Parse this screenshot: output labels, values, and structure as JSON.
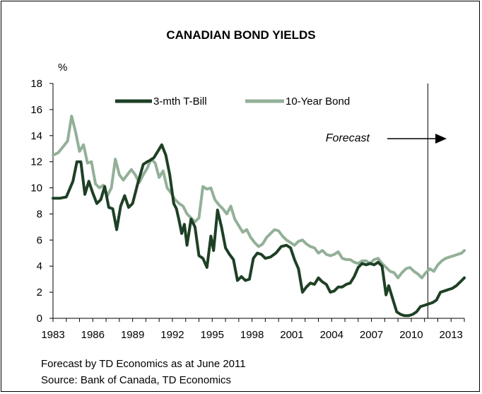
{
  "chart_data": {
    "type": "line",
    "title": "CANADIAN BOND YIELDS",
    "ylabel": "%",
    "xlabel": "",
    "ylim": [
      0,
      18
    ],
    "xlim": [
      1983,
      2014
    ],
    "y_ticks": [
      0,
      2,
      4,
      6,
      8,
      10,
      12,
      14,
      16,
      18
    ],
    "x_ticks": [
      1983,
      1986,
      1989,
      1992,
      1995,
      1998,
      2001,
      2004,
      2007,
      2010,
      2013
    ],
    "grid": false,
    "legend_position": "top",
    "forecast_start": 2011.25,
    "forecast_label": "Forecast",
    "series": [
      {
        "name": "3-mth T-Bill",
        "color": "#1e4025",
        "x": [
          1983,
          1983.5,
          1984,
          1984.5,
          1984.8,
          1985.1,
          1985.4,
          1985.7,
          1986,
          1986.3,
          1986.6,
          1986.9,
          1987.2,
          1987.5,
          1987.8,
          1988.1,
          1988.4,
          1988.7,
          1989,
          1989.4,
          1989.8,
          1990.1,
          1990.3,
          1990.6,
          1990.9,
          1991.2,
          1991.5,
          1991.8,
          1992.1,
          1992.3,
          1992.5,
          1992.7,
          1992.9,
          1993.1,
          1993.4,
          1993.7,
          1994,
          1994.3,
          1994.6,
          1994.9,
          1995.1,
          1995.4,
          1995.7,
          1996,
          1996.3,
          1996.6,
          1996.9,
          1997.2,
          1997.5,
          1997.8,
          1998.1,
          1998.4,
          1998.7,
          1999,
          1999.4,
          1999.8,
          2000.2,
          2000.6,
          2000.9,
          2001.2,
          2001.5,
          2001.8,
          2002.1,
          2002.4,
          2002.7,
          2003,
          2003.3,
          2003.6,
          2003.9,
          2004.2,
          2004.5,
          2004.8,
          2005.1,
          2005.4,
          2005.7,
          2006,
          2006.3,
          2006.6,
          2006.9,
          2007.2,
          2007.5,
          2007.8,
          2008.1,
          2008.3,
          2008.6,
          2008.9,
          2009.2,
          2009.5,
          2009.8,
          2010.1,
          2010.4,
          2010.7,
          2011,
          2011.3,
          2011.6,
          2011.9,
          2012.2,
          2012.5,
          2012.8,
          2013.1,
          2013.4,
          2013.7,
          2014
        ],
        "values": [
          9.2,
          9.2,
          9.3,
          10.5,
          12.0,
          12.0,
          9.5,
          10.5,
          9.6,
          8.8,
          9.1,
          10.1,
          8.5,
          8.4,
          6.8,
          8.6,
          9.4,
          8.5,
          8.8,
          10.4,
          11.8,
          12.0,
          12.1,
          12.3,
          12.8,
          13.3,
          12.5,
          11.0,
          8.8,
          8.4,
          7.5,
          6.5,
          7.2,
          5.6,
          7.6,
          7.0,
          4.8,
          4.6,
          3.9,
          6.3,
          5.2,
          8.3,
          7.0,
          5.4,
          4.9,
          4.5,
          2.9,
          3.2,
          2.9,
          3.0,
          4.6,
          5.0,
          4.9,
          4.6,
          4.7,
          5.0,
          5.5,
          5.6,
          5.4,
          4.5,
          3.8,
          2.0,
          2.4,
          2.7,
          2.6,
          3.1,
          2.8,
          2.6,
          2.0,
          2.1,
          2.4,
          2.4,
          2.6,
          2.7,
          3.2,
          3.9,
          4.2,
          4.1,
          4.2,
          4.1,
          4.3,
          4.0,
          1.8,
          2.5,
          1.5,
          0.5,
          0.3,
          0.2,
          0.2,
          0.3,
          0.5,
          0.9,
          1.0,
          1.1,
          1.2,
          1.4,
          2.0,
          2.1,
          2.2,
          2.3,
          2.5,
          2.8,
          3.1
        ]
      },
      {
        "name": "10-Year Bond",
        "color": "#93b098",
        "x": [
          1983,
          1983.4,
          1983.8,
          1984.1,
          1984.4,
          1984.7,
          1985,
          1985.3,
          1985.6,
          1985.9,
          1986.2,
          1986.5,
          1986.8,
          1987.1,
          1987.4,
          1987.7,
          1988,
          1988.3,
          1988.6,
          1988.9,
          1989.2,
          1989.5,
          1989.8,
          1990.1,
          1990.4,
          1990.7,
          1991,
          1991.3,
          1991.6,
          1991.9,
          1992.2,
          1992.5,
          1992.8,
          1993.1,
          1993.4,
          1993.7,
          1994,
          1994.3,
          1994.6,
          1994.9,
          1995.2,
          1995.5,
          1995.8,
          1996.1,
          1996.4,
          1996.7,
          1997,
          1997.3,
          1997.6,
          1997.9,
          1998.2,
          1998.5,
          1998.8,
          1999.1,
          1999.4,
          1999.7,
          2000,
          2000.3,
          2000.6,
          2000.9,
          2001.2,
          2001.5,
          2001.8,
          2002.1,
          2002.4,
          2002.7,
          2003,
          2003.3,
          2003.6,
          2003.9,
          2004.2,
          2004.5,
          2004.8,
          2005.1,
          2005.4,
          2005.7,
          2006,
          2006.3,
          2006.6,
          2006.9,
          2007.2,
          2007.5,
          2007.8,
          2008.1,
          2008.4,
          2008.7,
          2009,
          2009.3,
          2009.6,
          2009.9,
          2010.2,
          2010.5,
          2010.8,
          2011.1,
          2011.4,
          2011.7,
          2012,
          2012.3,
          2012.6,
          2012.9,
          2013.2,
          2013.5,
          2013.8,
          2014
        ],
        "values": [
          12.5,
          12.7,
          13.2,
          13.6,
          15.5,
          14.3,
          12.8,
          13.3,
          11.9,
          12.0,
          10.3,
          10.0,
          10.2,
          9.4,
          10.0,
          12.2,
          11.0,
          10.6,
          11.0,
          11.4,
          11.0,
          10.4,
          11.0,
          11.5,
          12.2,
          11.9,
          10.8,
          11.3,
          10.0,
          9.6,
          9.1,
          8.8,
          8.6,
          8.0,
          7.7,
          7.4,
          7.7,
          10.1,
          9.9,
          10.0,
          9.1,
          8.7,
          8.4,
          8.0,
          8.6,
          7.6,
          7.1,
          6.6,
          6.8,
          6.2,
          5.8,
          5.5,
          5.7,
          6.2,
          6.5,
          6.8,
          6.7,
          6.3,
          6.0,
          5.8,
          5.6,
          5.9,
          6.0,
          5.7,
          5.5,
          5.4,
          5.0,
          5.2,
          4.9,
          4.8,
          4.9,
          5.1,
          4.6,
          4.5,
          4.5,
          4.3,
          4.2,
          4.4,
          4.4,
          4.2,
          4.5,
          4.6,
          4.2,
          3.9,
          3.6,
          3.5,
          3.1,
          3.5,
          3.8,
          3.9,
          3.6,
          3.4,
          3.1,
          3.5,
          3.8,
          3.6,
          4.1,
          4.4,
          4.6,
          4.7,
          4.8,
          4.9,
          5.0,
          5.2
        ]
      }
    ]
  },
  "footnote": "Forecast by TD Economics as at June 2011",
  "source": "Source: Bank of Canada, TD Economics"
}
